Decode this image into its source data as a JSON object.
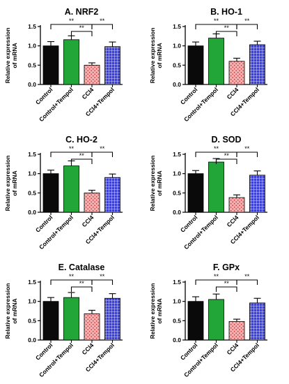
{
  "chart_data": [
    {
      "type": "bar",
      "title": "A. NRF2",
      "ylabel": "Relative expression\nof mRNA",
      "categories": [
        "Control",
        "Control+Tempol",
        "CCl4",
        "CCl4+Tempol"
      ],
      "values": [
        1.0,
        1.16,
        0.5,
        0.98
      ],
      "errors": [
        0.11,
        0.1,
        0.06,
        0.12
      ],
      "ylim": [
        0,
        1.5
      ],
      "yticks": [
        "0.0",
        "0.5",
        "1.0",
        "1.5"
      ],
      "significance": [
        {
          "from": 0,
          "to": 2,
          "label": "**"
        },
        {
          "from": 1,
          "to": 2,
          "label": "**"
        },
        {
          "from": 2,
          "to": 3,
          "label": "**"
        }
      ]
    },
    {
      "type": "bar",
      "title": "B. HO-1",
      "ylabel": "Relative expression\nof mRNA",
      "categories": [
        "Control",
        "Control+Tempol",
        "CCl4",
        "CCl4+Tempol"
      ],
      "values": [
        1.0,
        1.2,
        0.6,
        1.03
      ],
      "errors": [
        0.1,
        0.11,
        0.08,
        0.09
      ],
      "ylim": [
        0,
        1.5
      ],
      "yticks": [
        "0.0",
        "0.5",
        "1.0",
        "1.5"
      ],
      "significance": [
        {
          "from": 0,
          "to": 2,
          "label": "**"
        },
        {
          "from": 1,
          "to": 2,
          "label": "**"
        },
        {
          "from": 2,
          "to": 3,
          "label": "**"
        }
      ]
    },
    {
      "type": "bar",
      "title": "C. HO-2",
      "ylabel": "Relative expression\nof mRNA",
      "categories": [
        "Control",
        "Control+Tempol",
        "CCl4",
        "CCl4+Tempol"
      ],
      "values": [
        1.0,
        1.2,
        0.5,
        0.9
      ],
      "errors": [
        0.09,
        0.13,
        0.07,
        0.09
      ],
      "ylim": [
        0,
        1.5
      ],
      "yticks": [
        "0.0",
        "0.5",
        "1.0",
        "1.5"
      ],
      "significance": [
        {
          "from": 0,
          "to": 2,
          "label": "**"
        },
        {
          "from": 1,
          "to": 2,
          "label": "**"
        },
        {
          "from": 2,
          "to": 3,
          "label": "**"
        }
      ]
    },
    {
      "type": "bar",
      "title": "D. SOD",
      "ylabel": "Relative expression\nof mRNA",
      "categories": [
        "Control",
        "Control+Tempol",
        "CCl4",
        "CCl4+Tempol"
      ],
      "values": [
        1.0,
        1.3,
        0.38,
        0.96
      ],
      "errors": [
        0.08,
        0.09,
        0.07,
        0.11
      ],
      "ylim": [
        0,
        1.5
      ],
      "yticks": [
        "0.0",
        "0.5",
        "1.0",
        "1.5"
      ],
      "significance": [
        {
          "from": 0,
          "to": 2,
          "label": "**"
        },
        {
          "from": 1,
          "to": 2,
          "label": "**"
        },
        {
          "from": 2,
          "to": 3,
          "label": "**"
        }
      ]
    },
    {
      "type": "bar",
      "title": "E. Catalase",
      "ylabel": "Relative expression\nof mRNA",
      "categories": [
        "Control",
        "Control+Tempol",
        "CCl4",
        "CCl4+Tempol"
      ],
      "values": [
        1.0,
        1.1,
        0.68,
        1.08
      ],
      "errors": [
        0.1,
        0.13,
        0.09,
        0.12
      ],
      "ylim": [
        0,
        1.5
      ],
      "yticks": [
        "0.0",
        "0.5",
        "1.0",
        "1.5"
      ],
      "significance": [
        {
          "from": 0,
          "to": 2,
          "label": "**"
        },
        {
          "from": 1,
          "to": 2,
          "label": "**"
        },
        {
          "from": 2,
          "to": 3,
          "label": "**"
        }
      ]
    },
    {
      "type": "bar",
      "title": "F. GPx",
      "ylabel": "Relative expression\nof mRNA",
      "categories": [
        "Control",
        "Control+Tempol",
        "CCl4",
        "CCl4+Tempol"
      ],
      "values": [
        1.0,
        1.05,
        0.48,
        0.96
      ],
      "errors": [
        0.12,
        0.14,
        0.06,
        0.12
      ],
      "ylim": [
        0,
        1.5
      ],
      "yticks": [
        "0.0",
        "0.5",
        "1.0",
        "1.5"
      ],
      "significance": [
        {
          "from": 0,
          "to": 2,
          "label": "**"
        },
        {
          "from": 1,
          "to": 2,
          "label": "**"
        },
        {
          "from": 2,
          "to": 3,
          "label": "**"
        }
      ]
    }
  ],
  "style": {
    "bar_fill_colors": [
      "#0a0a0a",
      "#22a637",
      "#f2a6a6",
      "#3438e0"
    ],
    "bar_patterns": [
      "solid",
      "solid",
      "dots",
      "grid"
    ],
    "axis_color": "#000000",
    "text_color": "#000000"
  }
}
